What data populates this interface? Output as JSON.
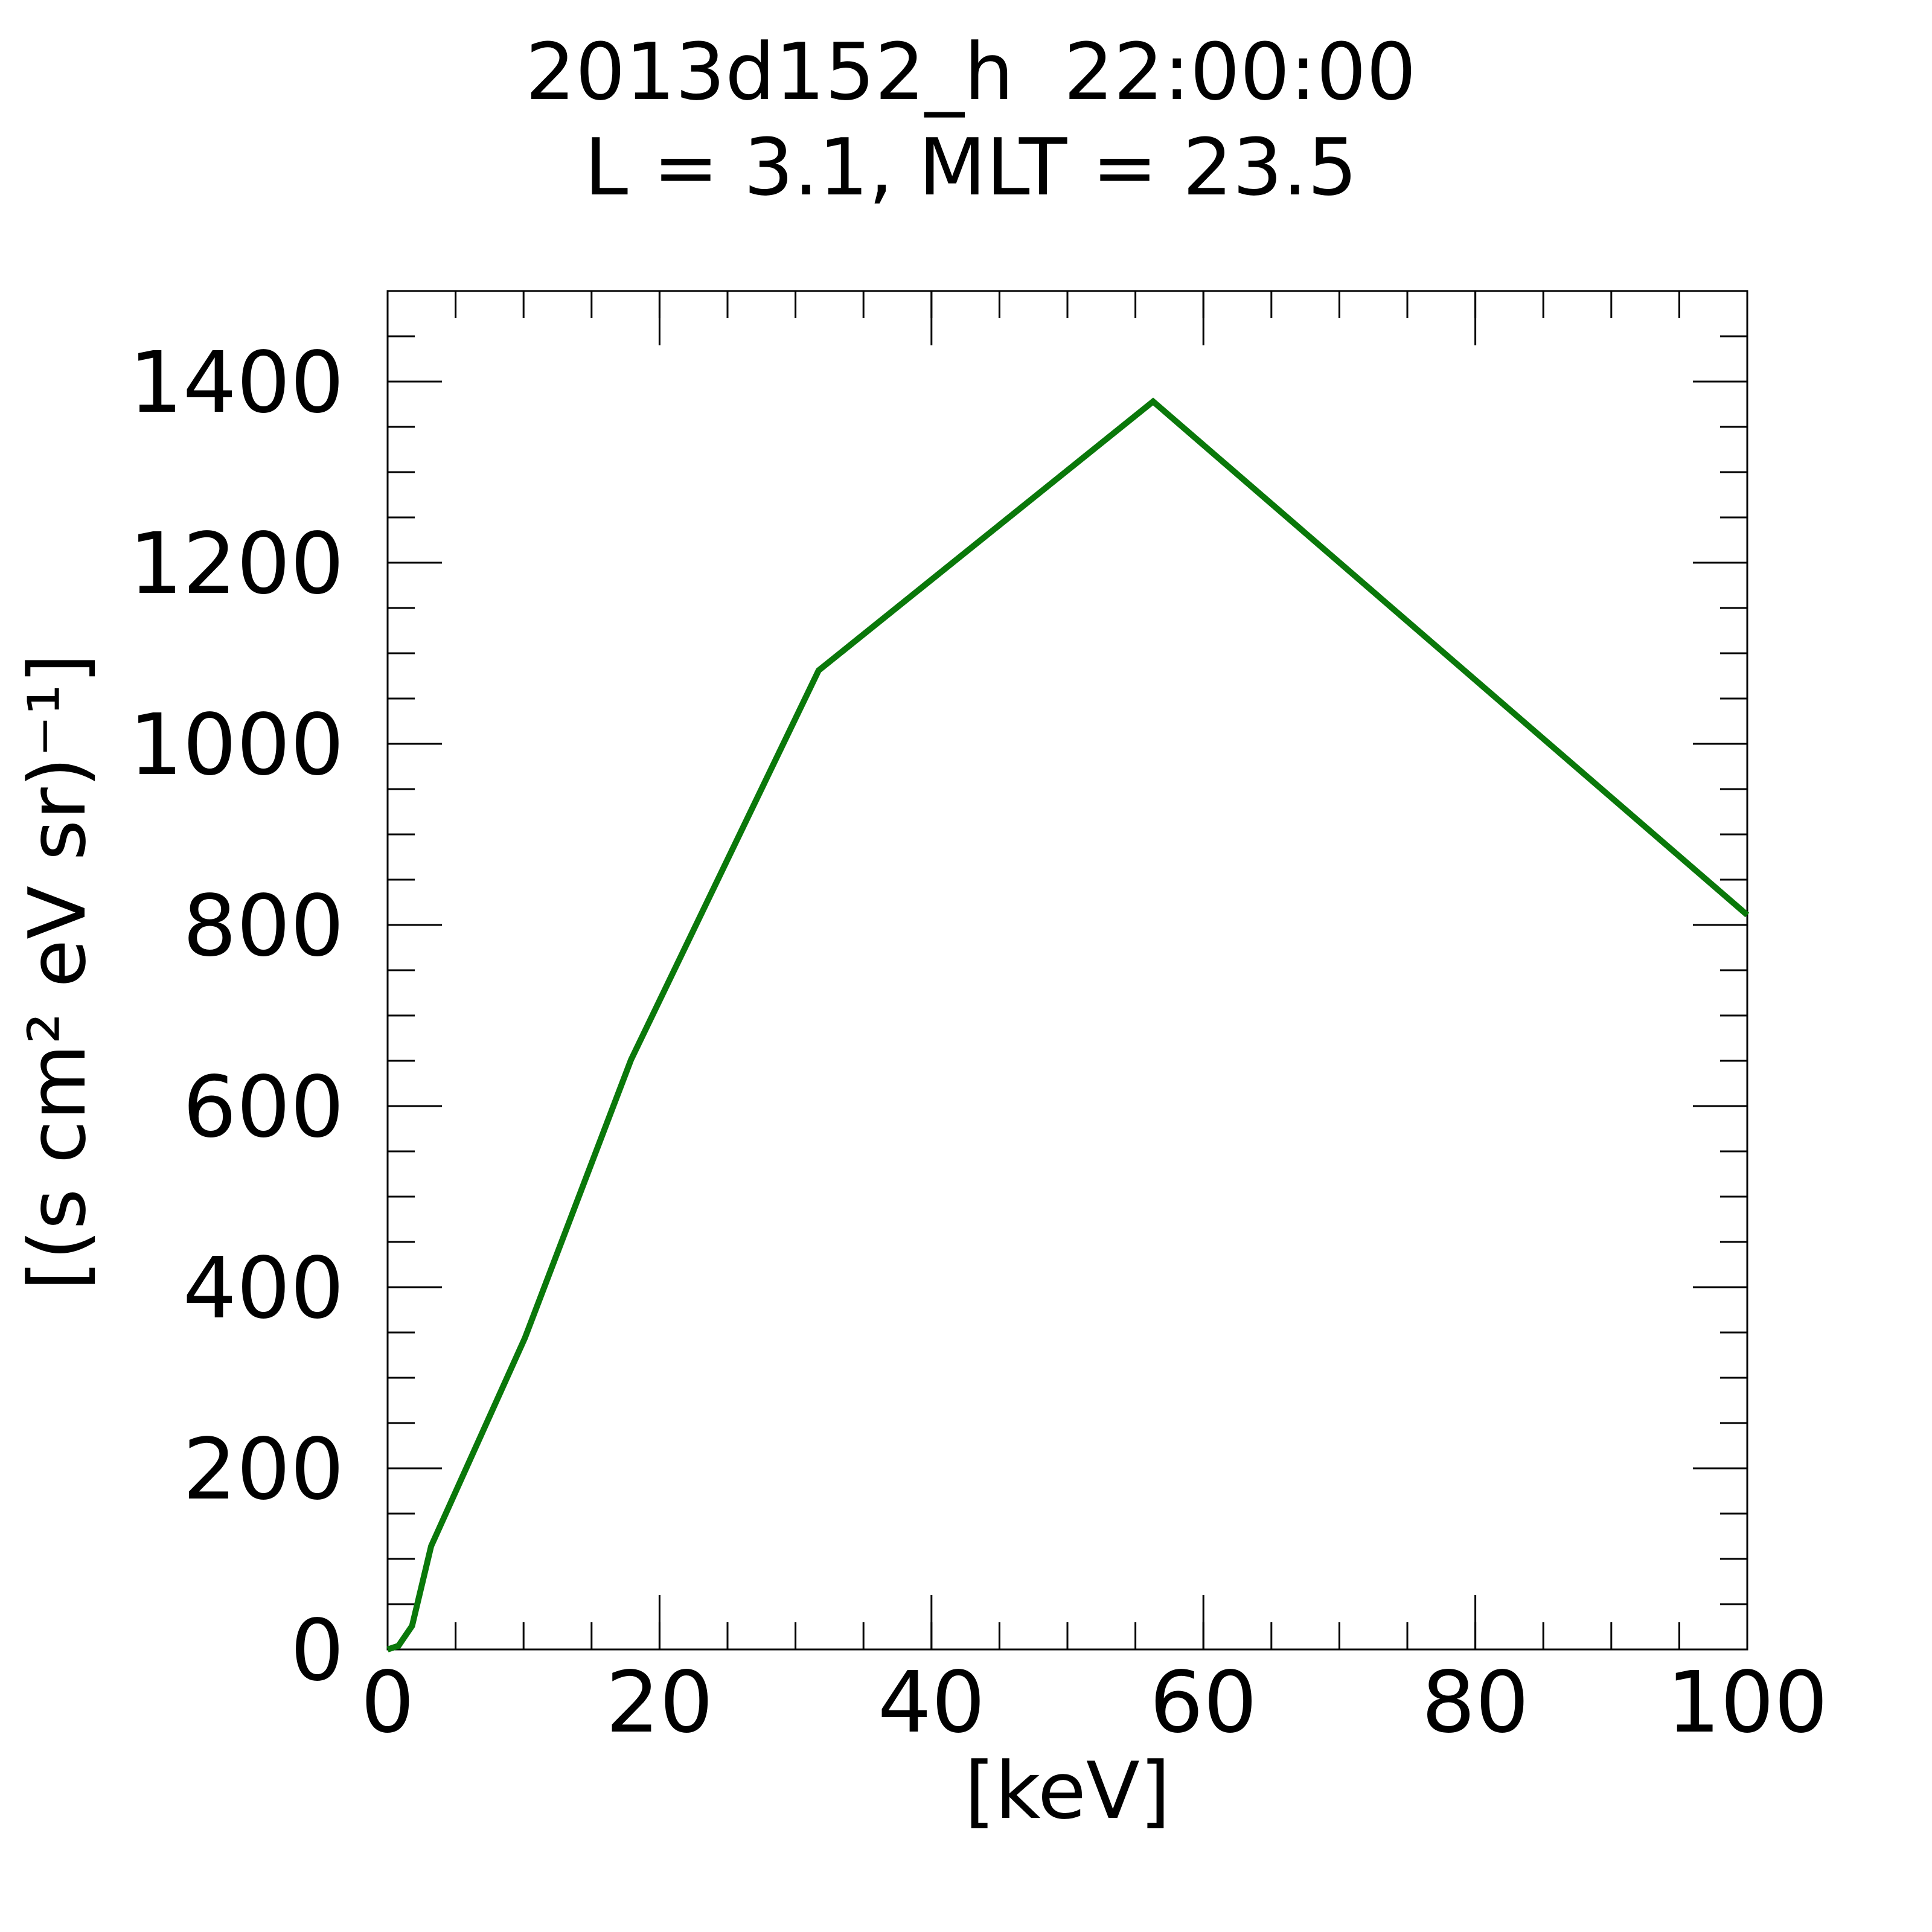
{
  "chart_data": {
    "type": "line",
    "title": "2013d152_h  22:00:00",
    "subtitle": "L = 3.1, MLT = 23.5",
    "x_label": "[keV]",
    "y_label": "[(s cm² eV sr)⁻¹]",
    "x": [
      0,
      0.8,
      1.8,
      3.2,
      10.1,
      17.9,
      31.7,
      56.3,
      100
    ],
    "series": [
      {
        "color": "#0a780a",
        "values": [
          0,
          4,
          26,
          114,
          344,
          651,
          1081,
          1378,
          811
        ]
      }
    ],
    "xlim": [
      0,
      100
    ],
    "xticks": [
      0,
      20,
      40,
      60,
      80,
      100
    ],
    "ylim": [
      0,
      1500
    ],
    "yticks": [
      0,
      200,
      400,
      600,
      800,
      1000,
      1200,
      1400
    ],
    "grid": false
  }
}
